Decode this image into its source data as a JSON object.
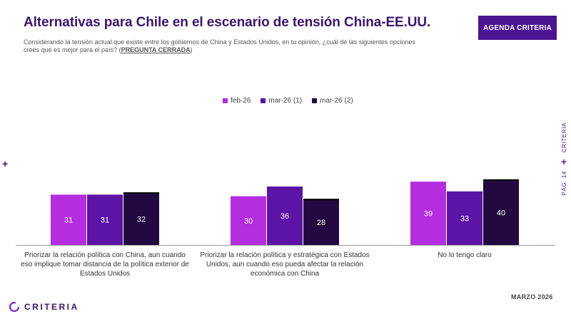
{
  "header": {
    "title": "Alternativas para Chile en el escenario de tensión China-EE.UU.",
    "subtitle": "Considerando la tensión actual que existe entre los gobiernos de China y Estados Unidos, en tu opinión, ¿cuál de las siguientes opciones crees que es mejor para el país? (",
    "subtitle_tag": "PREGUNTA CERRADA",
    "subtitle_end": ")",
    "badge": "AGENDA CRITERIA"
  },
  "side": {
    "criteria": "CRITERIA",
    "page": "PÁG. 14"
  },
  "plus_symbol": "+",
  "footer": {
    "date": "MARZO 2026",
    "logo": "CRITERIA"
  },
  "colors": {
    "feb": "#b42ee0",
    "mar1": "#5b14a6",
    "mar2": "#220a40",
    "brand": "#3b1670"
  },
  "chart_data": {
    "type": "bar",
    "categories": [
      "Priorizar la relación política con China, aun cuando eso implique tomar distancia de la política exterior de Estados Unidos",
      "Priorizar la relación política y estratégica con Estados Unidos, aun cuando eso pueda afectar la relación económica con China",
      "No lo tengo claro"
    ],
    "series": [
      {
        "name": "feb-26",
        "values": [
          31,
          30,
          39
        ],
        "color": "#b42ee0"
      },
      {
        "name": "mar-26 (1)",
        "values": [
          31,
          36,
          33
        ],
        "color": "#5b14a6"
      },
      {
        "name": "mar-26 (2)",
        "values": [
          32,
          28,
          40
        ],
        "color": "#220a40"
      }
    ],
    "ylim": [
      0,
      40
    ],
    "legend": "top-center",
    "grid": false
  }
}
